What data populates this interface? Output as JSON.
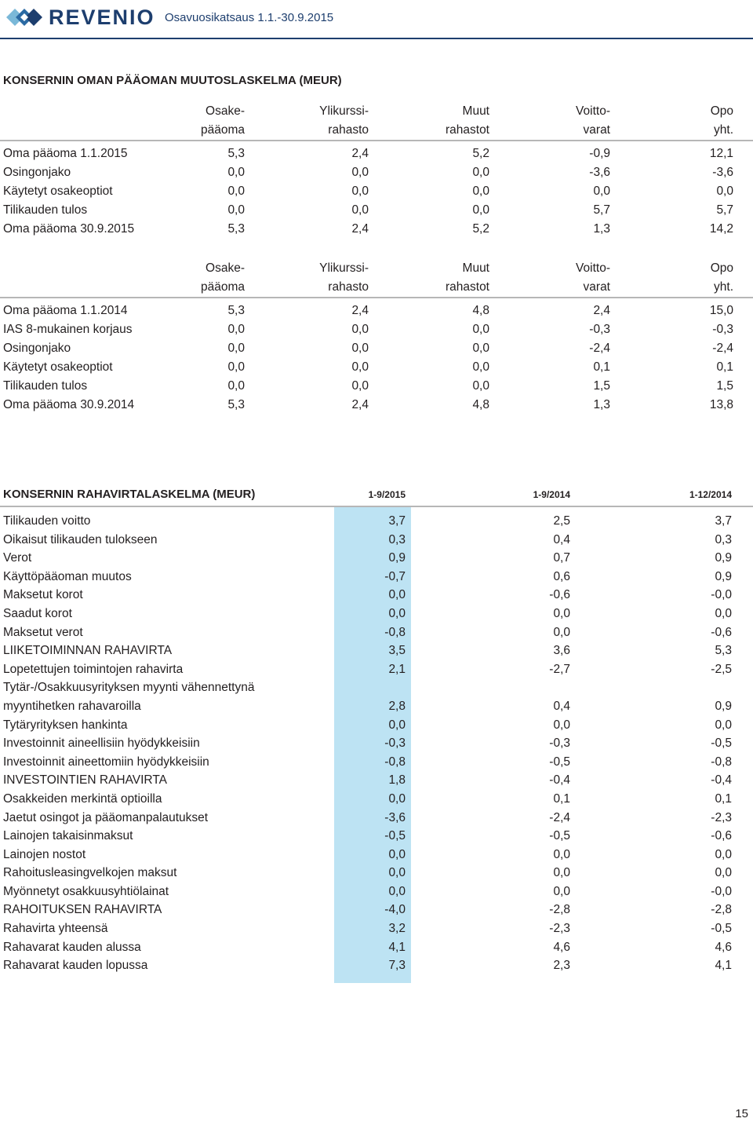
{
  "header": {
    "brand": "REVENIO",
    "subtitle": "Osavuosikatsaus 1.1.-30.9.2015"
  },
  "equity": {
    "title": "KONSERNIN OMAN PÄÄOMAN MUUTOSLASKELMA (MEUR)",
    "columns": [
      {
        "l1": "Osake-",
        "l2": "pääoma"
      },
      {
        "l1": "Ylikurssi-",
        "l2": "rahasto"
      },
      {
        "l1": "Muut",
        "l2": "rahastot"
      },
      {
        "l1": "Voitto-",
        "l2": "varat"
      },
      {
        "l1": "Opo",
        "l2": "yht."
      }
    ],
    "table2015": [
      {
        "label": "Oma pääoma 1.1.2015",
        "v": [
          "5,3",
          "2,4",
          "5,2",
          "-0,9",
          "12,1"
        ]
      },
      {
        "label": "Osingonjako",
        "v": [
          "0,0",
          "0,0",
          "0,0",
          "-3,6",
          "-3,6"
        ]
      },
      {
        "label": "Käytetyt osakeoptiot",
        "v": [
          "0,0",
          "0,0",
          "0,0",
          "0,0",
          "0,0"
        ]
      },
      {
        "label": "Tilikauden tulos",
        "v": [
          "0,0",
          "0,0",
          "0,0",
          "5,7",
          "5,7"
        ]
      },
      {
        "label": "Oma pääoma 30.9.2015",
        "v": [
          "5,3",
          "2,4",
          "5,2",
          "1,3",
          "14,2"
        ]
      }
    ],
    "table2014": [
      {
        "label": "Oma pääoma 1.1.2014",
        "v": [
          "5,3",
          "2,4",
          "4,8",
          "2,4",
          "15,0"
        ]
      },
      {
        "label": "IAS 8-mukainen korjaus",
        "v": [
          "0,0",
          "0,0",
          "0,0",
          "-0,3",
          "-0,3"
        ]
      },
      {
        "label": "Osingonjako",
        "v": [
          "0,0",
          "0,0",
          "0,0",
          "-2,4",
          "-2,4"
        ]
      },
      {
        "label": "Käytetyt osakeoptiot",
        "v": [
          "0,0",
          "0,0",
          "0,0",
          "0,1",
          "0,1"
        ]
      },
      {
        "label": "Tilikauden tulos",
        "v": [
          "0,0",
          "0,0",
          "0,0",
          "1,5",
          "1,5"
        ]
      },
      {
        "label": "Oma pääoma 30.9.2014",
        "v": [
          "5,3",
          "2,4",
          "4,8",
          "1,3",
          "13,8"
        ]
      }
    ]
  },
  "cashflow": {
    "title": "KONSERNIN RAHAVIRTALASKELMA (MEUR)",
    "periods": [
      "1-9/2015",
      "1-9/2014",
      "1-12/2014"
    ],
    "rows": [
      {
        "label": "Tilikauden voitto",
        "v": [
          "3,7",
          "2,5",
          "3,7"
        ]
      },
      {
        "label": "Oikaisut tilikauden tulokseen",
        "v": [
          "0,3",
          "0,4",
          "0,3"
        ]
      },
      {
        "label": "Verot",
        "v": [
          "0,9",
          "0,7",
          "0,9"
        ]
      },
      {
        "label": "Käyttöpääoman muutos",
        "v": [
          "-0,7",
          "0,6",
          "0,9"
        ]
      },
      {
        "label": "Maksetut korot",
        "v": [
          "0,0",
          "-0,6",
          "-0,0"
        ]
      },
      {
        "label": "Saadut korot",
        "v": [
          "0,0",
          "0,0",
          "0,0"
        ]
      },
      {
        "label": "Maksetut verot",
        "v": [
          "-0,8",
          "0,0",
          "-0,6"
        ]
      },
      {
        "label": "LIIKETOIMINNAN RAHAVIRTA",
        "v": [
          "3,5",
          "3,6",
          "5,3"
        ]
      },
      {
        "label": "Lopetettujen toimintojen rahavirta",
        "v": [
          "2,1",
          "-2,7",
          "-2,5"
        ]
      },
      {
        "label": "Tytär-/Osakkuusyrityksen myynti vähennettynä",
        "v": [
          "",
          "",
          ""
        ]
      },
      {
        "label": "myyntihetken rahavaroilla",
        "v": [
          "2,8",
          "0,4",
          "0,9"
        ]
      },
      {
        "label": "Tytäryrityksen hankinta",
        "v": [
          "0,0",
          "0,0",
          "0,0"
        ]
      },
      {
        "label": "Investoinnit aineellisiin hyödykkeisiin",
        "v": [
          "-0,3",
          "-0,3",
          "-0,5"
        ]
      },
      {
        "label": "Investoinnit aineettomiin hyödykkeisiin",
        "v": [
          "-0,8",
          "-0,5",
          "-0,8"
        ]
      },
      {
        "label": "INVESTOINTIEN RAHAVIRTA",
        "v": [
          "1,8",
          "-0,4",
          "-0,4"
        ]
      },
      {
        "label": "Osakkeiden merkintä optioilla",
        "v": [
          "0,0",
          "0,1",
          "0,1"
        ]
      },
      {
        "label": "Jaetut osingot ja pääomanpalautukset",
        "v": [
          "-3,6",
          "-2,4",
          "-2,3"
        ]
      },
      {
        "label": "Lainojen takaisinmaksut",
        "v": [
          "-0,5",
          "-0,5",
          "-0,6"
        ]
      },
      {
        "label": "Lainojen nostot",
        "v": [
          "0,0",
          "0,0",
          "0,0"
        ]
      },
      {
        "label": "Rahoitusleasingvelkojen maksut",
        "v": [
          "0,0",
          "0,0",
          "0,0"
        ]
      },
      {
        "label": "Myönnetyt osakkuusyhtiölainat",
        "v": [
          "0,0",
          "0,0",
          "-0,0"
        ]
      },
      {
        "label": "RAHOITUKSEN RAHAVIRTA",
        "v": [
          "-4,0",
          "-2,8",
          "-2,8"
        ]
      },
      {
        "label": "Rahavirta yhteensä",
        "v": [
          "3,2",
          "-2,3",
          "-0,5"
        ]
      },
      {
        "label": "Rahavarat kauden alussa",
        "v": [
          "4,1",
          "4,6",
          "4,6"
        ]
      },
      {
        "label": "Rahavarat kauden lopussa",
        "v": [
          "7,3",
          "2,3",
          "4,1"
        ]
      }
    ]
  },
  "page_number": "15",
  "colors": {
    "brand": "#1d3e6e",
    "highlight": "#bde3f3"
  },
  "icons": {
    "logo": "revenio-logo-icon"
  }
}
